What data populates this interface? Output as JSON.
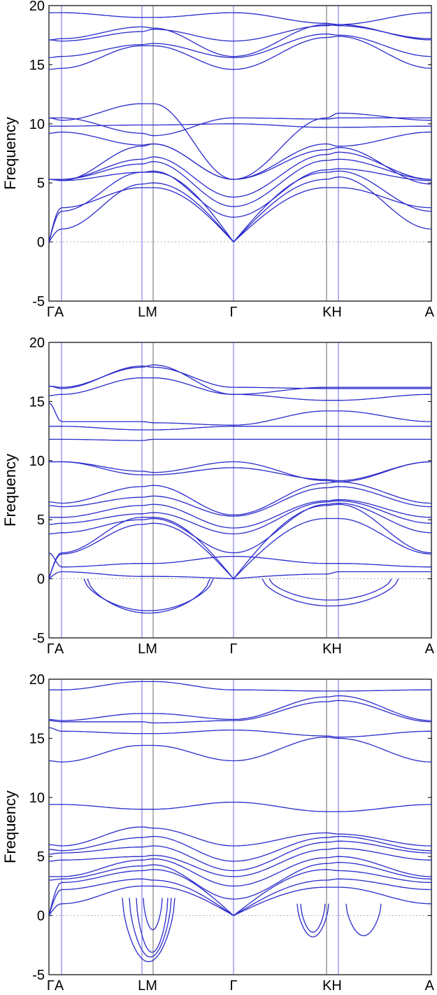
{
  "chart_data": [
    {
      "type": "line",
      "title": "",
      "ylabel": "Frequency",
      "xlabel": "",
      "ylim": [
        -5,
        20
      ],
      "yticks": [
        "20",
        "15",
        "10",
        "5",
        "0",
        "-5"
      ],
      "kpoints": [
        "Γ",
        "A",
        "L",
        "M",
        "Γ",
        "K",
        "H",
        "A"
      ],
      "kpoint_labels": [
        "ΓA",
        "LM",
        "Γ",
        "KH",
        "A"
      ],
      "zero_line": true,
      "line_color": "#2a2acc",
      "unstable_dips": []
    },
    {
      "type": "line",
      "title": "",
      "ylabel": "Frequency",
      "xlabel": "",
      "ylim": [
        -5,
        20
      ],
      "yticks": [
        "20",
        "15",
        "10",
        "5",
        "0",
        "-5"
      ],
      "kpoints": [
        "Γ",
        "A",
        "L",
        "M",
        "Γ",
        "K",
        "H",
        "A"
      ],
      "kpoint_labels": [
        "ΓA",
        "LM",
        "Γ",
        "KH",
        "A"
      ],
      "zero_line": true,
      "line_color": "#2a2acc",
      "unstable_dips": [
        {
          "from": "A",
          "to": "Γ",
          "min_frequency": -2.9
        },
        {
          "from": "Γ",
          "to": "A",
          "min_frequency": -2.3
        }
      ]
    },
    {
      "type": "line",
      "title": "",
      "ylabel": "Frequency",
      "xlabel": "",
      "ylim": [
        -5,
        20
      ],
      "yticks": [
        "20",
        "15",
        "10",
        "5",
        "0",
        "-5"
      ],
      "kpoints": [
        "Γ",
        "A",
        "L",
        "M",
        "Γ",
        "K",
        "H",
        "A"
      ],
      "kpoint_labels": [
        "ΓA",
        "LM",
        "Γ",
        "KH",
        "A"
      ],
      "zero_line": true,
      "line_color": "#2a2acc",
      "unstable_dips": [
        {
          "near": "L",
          "min_frequency": -3.9
        },
        {
          "near": "M",
          "min_frequency": -1.2
        },
        {
          "near": "K",
          "min_frequency": -1.8
        },
        {
          "near": "H",
          "min_frequency": -1.7
        }
      ]
    }
  ]
}
